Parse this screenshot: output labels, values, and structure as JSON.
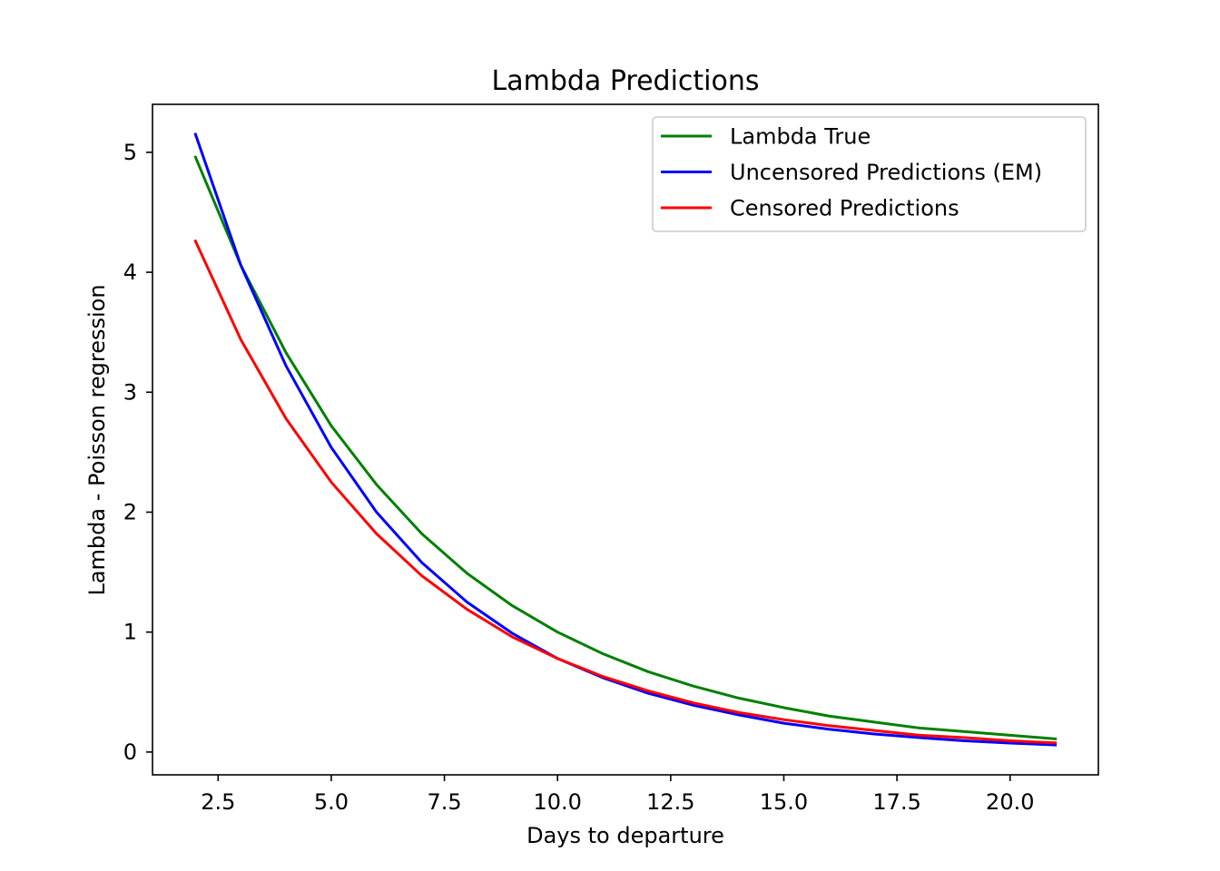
{
  "chart_data": {
    "type": "line",
    "title": "Lambda Predictions",
    "xlabel": "Days to departure",
    "ylabel": "Lambda - Poisson regression",
    "xlim": [
      1.05,
      21.95
    ],
    "ylim": [
      -0.19,
      5.4
    ],
    "xticks": [
      2.5,
      5.0,
      7.5,
      10.0,
      12.5,
      15.0,
      17.5,
      20.0
    ],
    "xtick_labels": [
      "2.5",
      "5.0",
      "7.5",
      "10.0",
      "12.5",
      "15.0",
      "17.5",
      "20.0"
    ],
    "yticks": [
      0,
      1,
      2,
      3,
      4,
      5
    ],
    "ytick_labels": [
      "0",
      "1",
      "2",
      "3",
      "4",
      "5"
    ],
    "grid": false,
    "legend_position": "top-right",
    "x": [
      2,
      3,
      4,
      5,
      6,
      7,
      8,
      9,
      10,
      11,
      12,
      13,
      14,
      15,
      16,
      17,
      18,
      19,
      20,
      21
    ],
    "series": [
      {
        "name": "Lambda True",
        "color": "#008000",
        "values": [
          4.96,
          4.06,
          3.33,
          2.72,
          2.23,
          1.82,
          1.49,
          1.22,
          1.0,
          0.82,
          0.67,
          0.55,
          0.45,
          0.37,
          0.3,
          0.25,
          0.2,
          0.17,
          0.14,
          0.11
        ]
      },
      {
        "name": "Uncensored Predictions (EM)",
        "color": "#0000ff",
        "values": [
          5.15,
          4.06,
          3.22,
          2.54,
          2.0,
          1.58,
          1.25,
          0.99,
          0.78,
          0.62,
          0.49,
          0.39,
          0.31,
          0.24,
          0.19,
          0.15,
          0.12,
          0.094,
          0.075,
          0.059
        ]
      },
      {
        "name": "Censored Predictions",
        "color": "#ff0000",
        "values": [
          4.26,
          3.44,
          2.78,
          2.25,
          1.82,
          1.47,
          1.19,
          0.96,
          0.78,
          0.63,
          0.51,
          0.41,
          0.33,
          0.27,
          0.22,
          0.18,
          0.14,
          0.12,
          0.094,
          0.076
        ]
      }
    ]
  }
}
